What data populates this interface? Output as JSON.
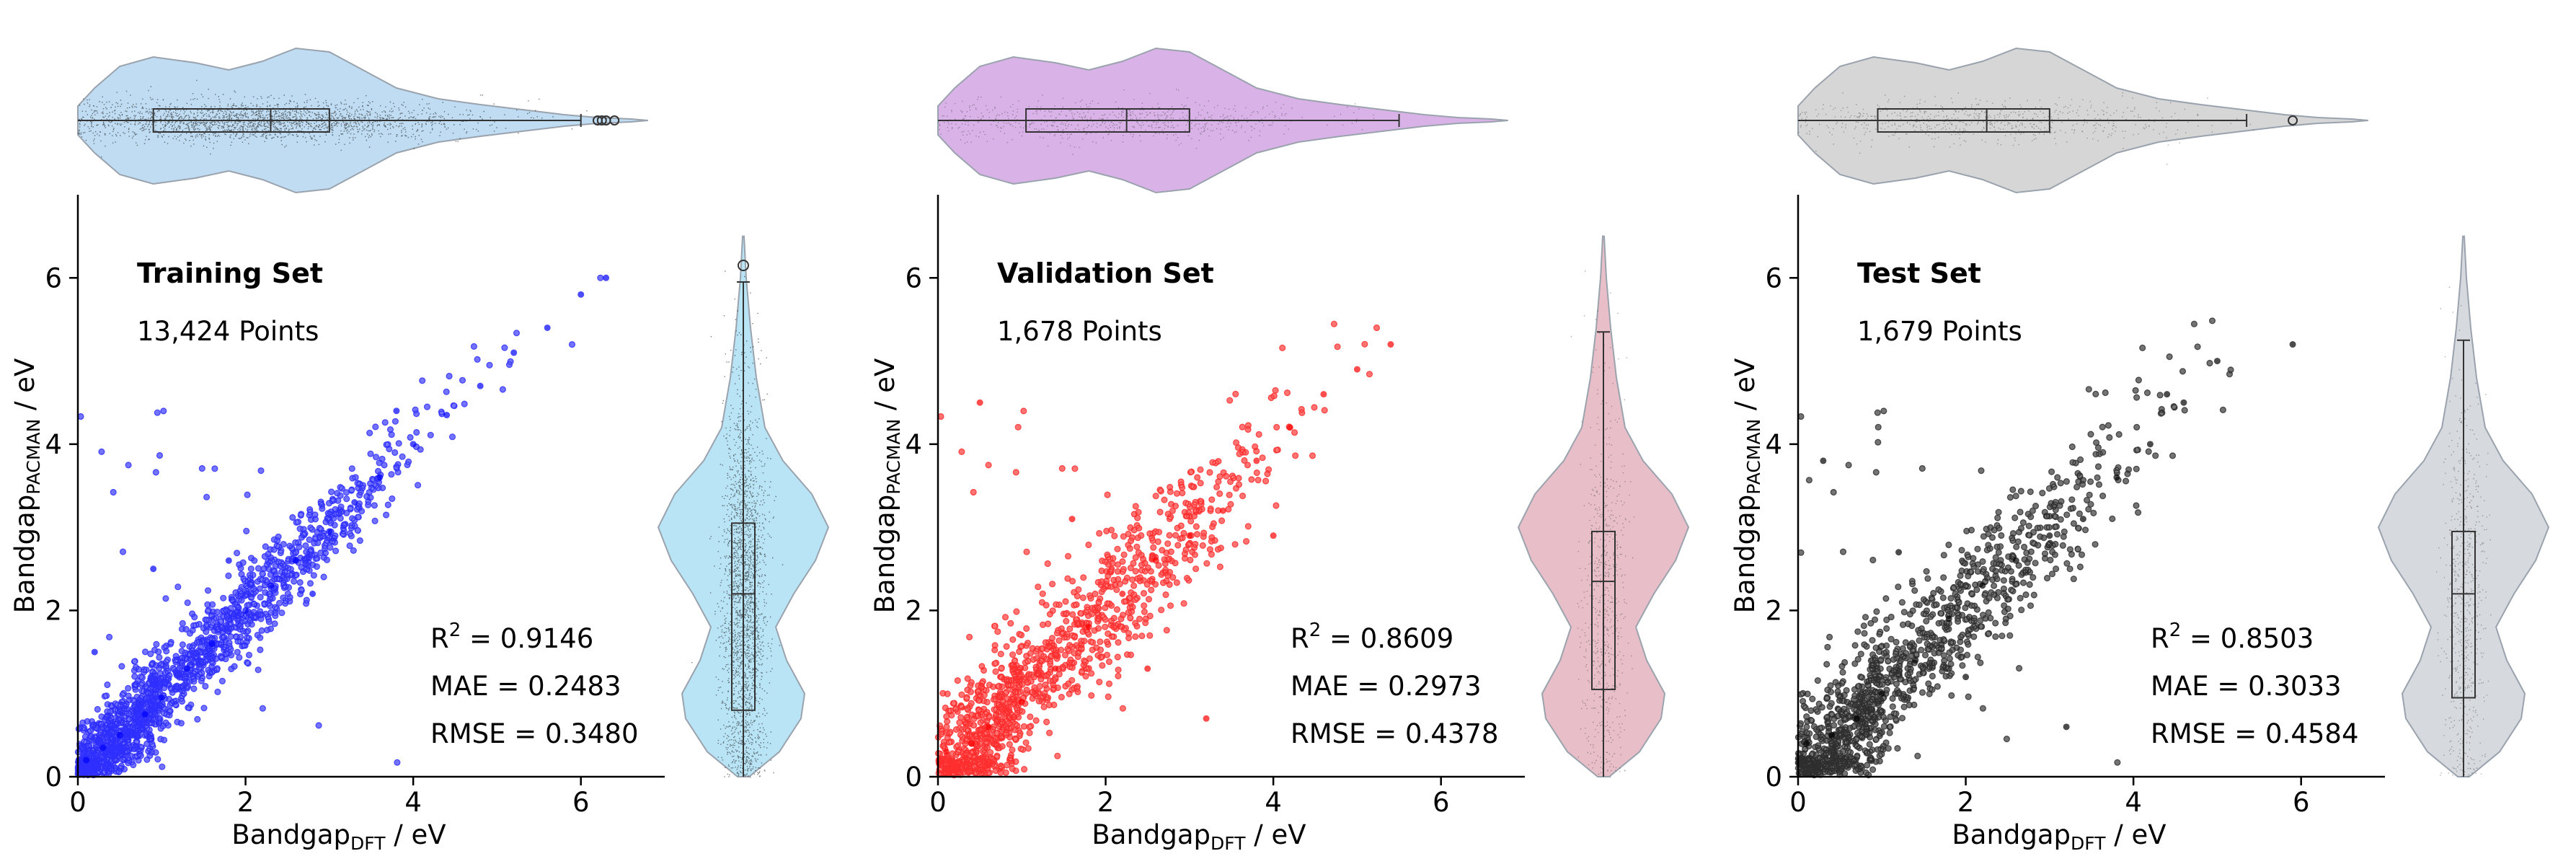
{
  "chart_data": [
    {
      "type": "scatter",
      "title": "Training Set",
      "subtitle": "13,424 Points",
      "xlabel": {
        "main": "Bandgap",
        "sub": "DFT",
        "unit": " / eV"
      },
      "ylabel": {
        "main": "Bandgap",
        "sub": "PACMAN",
        "unit": " / eV"
      },
      "xlim": [
        0,
        7
      ],
      "ylim": [
        0,
        7
      ],
      "xticks": [
        0,
        2,
        4,
        6
      ],
      "yticks": [
        0,
        2,
        4,
        6
      ],
      "metrics": {
        "r2_label": "R",
        "r2_sup": "2",
        "r2": " = 0.9146",
        "mae": "MAE = 0.2483",
        "rmse": "RMSE = 0.3480"
      },
      "color": "#0000ff",
      "violin_color": "#bfdcf2",
      "violin_right_color": "#b9e4f5",
      "series": [
        {
          "x": [
            0.1,
            0.3,
            0.5,
            0.8,
            1.0,
            1.3,
            1.6,
            2.0,
            2.3,
            2.6,
            3.0,
            3.3,
            3.6,
            4.0,
            4.4,
            4.8,
            5.2,
            5.6,
            6.0,
            6.3,
            0.2,
            0.9,
            1.8,
            2.8,
            3.8
          ],
          "y": [
            0.2,
            0.35,
            0.5,
            0.75,
            0.95,
            1.3,
            1.6,
            2.0,
            2.3,
            2.6,
            2.95,
            3.3,
            3.6,
            4.0,
            4.35,
            4.7,
            5.1,
            5.4,
            5.8,
            6.0,
            1.5,
            2.5,
            2.6,
            2.2,
            4.4
          ]
        }
      ],
      "outliers_top": [
        6.2,
        6.25,
        6.3,
        6.4
      ],
      "outlier_right": [
        6.15
      ]
    },
    {
      "type": "scatter",
      "title": "Validation Set",
      "subtitle": "1,678 Points",
      "xlabel": {
        "main": "Bandgap",
        "sub": "DFT",
        "unit": " / eV"
      },
      "ylabel": {
        "main": "Bandgap",
        "sub": "PACMAN",
        "unit": " / eV"
      },
      "xlim": [
        0,
        7
      ],
      "ylim": [
        0,
        7
      ],
      "xticks": [
        0,
        2,
        4,
        6
      ],
      "yticks": [
        0,
        2,
        4,
        6
      ],
      "metrics": {
        "r2_label": "R",
        "r2_sup": "2",
        "r2": " = 0.8609",
        "mae": "MAE = 0.2973",
        "rmse": "RMSE = 0.4378"
      },
      "color": "#ff0000",
      "violin_color": "#d9b3e8",
      "violin_right_color": "#e8bfc8",
      "series": [
        {
          "x": [
            0.1,
            0.4,
            0.6,
            1.0,
            1.4,
            1.8,
            2.2,
            2.6,
            3.0,
            3.4,
            3.8,
            4.2,
            4.6,
            5.0,
            5.4,
            0.5,
            1.6,
            2.5,
            3.2,
            4.0
          ],
          "y": [
            0.3,
            0.4,
            0.6,
            0.9,
            1.3,
            1.8,
            2.2,
            2.6,
            2.9,
            3.2,
            3.8,
            4.2,
            4.6,
            4.9,
            5.2,
            4.5,
            3.1,
            1.3,
            0.7,
            2.9
          ]
        }
      ],
      "outliers_top": [],
      "outlier_right": []
    },
    {
      "type": "scatter",
      "title": "Test Set",
      "subtitle": "1,679 Points",
      "xlabel": {
        "main": "Bandgap",
        "sub": "DFT",
        "unit": " / eV"
      },
      "ylabel": {
        "main": "Bandgap",
        "sub": "PACMAN",
        "unit": " / eV"
      },
      "xlim": [
        0,
        7
      ],
      "ylim": [
        0,
        7
      ],
      "xticks": [
        0,
        2,
        4,
        6
      ],
      "yticks": [
        0,
        2,
        4,
        6
      ],
      "metrics": {
        "r2_label": "R",
        "r2_sup": "2",
        "r2": " = 0.8503",
        "mae": "MAE = 0.3033",
        "rmse": "RMSE = 0.4584"
      },
      "color": "#000000",
      "violin_color": "#d6d6d6",
      "violin_right_color": "#d6d9de",
      "series": [
        {
          "x": [
            0.1,
            0.4,
            0.7,
            1.0,
            1.4,
            1.8,
            2.2,
            2.6,
            3.0,
            3.4,
            3.8,
            4.2,
            4.6,
            5.0,
            5.9,
            0.3,
            1.2,
            2.0,
            3.2,
            4.4
          ],
          "y": [
            0.4,
            0.5,
            0.7,
            1.0,
            1.4,
            1.9,
            2.3,
            2.6,
            2.9,
            3.1,
            3.6,
            4.0,
            4.5,
            5.0,
            5.2,
            3.8,
            2.7,
            1.2,
            0.6,
            4.6
          ]
        }
      ],
      "outliers_top": [
        5.9
      ],
      "outlier_right": []
    }
  ]
}
